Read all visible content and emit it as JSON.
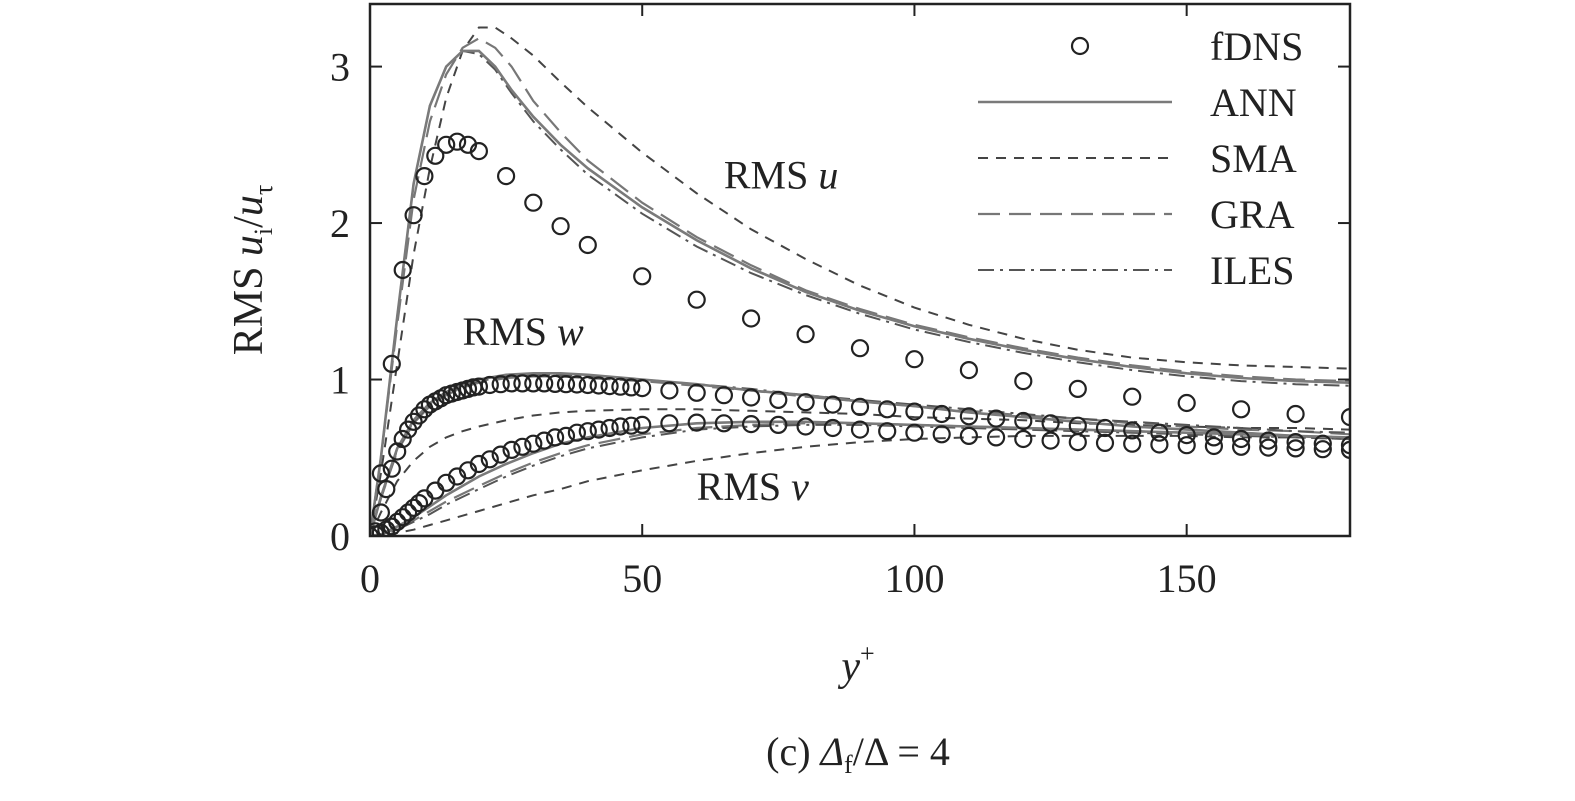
{
  "chart_data": {
    "type": "line",
    "caption_prefix": "(c) ",
    "caption_df": "Δ",
    "caption_df_sub": "f",
    "caption_rest": "/Δ = 4",
    "xlabel_main": "y",
    "xlabel_sup": "+",
    "ylabel_prefix": "RMS ",
    "ylabel_ui": "u",
    "ylabel_i": "i",
    "ylabel_slash": "/",
    "ylabel_ut": "u",
    "ylabel_tau": "τ",
    "xlim": [
      0,
      180
    ],
    "ylim": [
      0,
      3.4
    ],
    "x_ticks": [
      0,
      50,
      100,
      150
    ],
    "x_tick_labels": [
      "0",
      "50",
      "100",
      "150"
    ],
    "y_ticks": [
      0,
      1,
      2,
      3
    ],
    "y_tick_labels": [
      "0",
      "1",
      "2",
      "3"
    ],
    "legend_position": "top-right",
    "legend": [
      {
        "label": "fDNS",
        "style": "circle"
      },
      {
        "label": "ANN",
        "style": "solid"
      },
      {
        "label": "SMA",
        "style": "short-dash"
      },
      {
        "label": "GRA",
        "style": "long-dash"
      },
      {
        "label": "ILES",
        "style": "dash-dot"
      }
    ],
    "annotations": [
      {
        "prefix": "RMS ",
        "var": "u",
        "x": 65,
        "y": 2.22
      },
      {
        "prefix": "RMS ",
        "var": "w",
        "x": 17,
        "y": 1.22
      },
      {
        "prefix": "RMS ",
        "var": "v",
        "x": 60,
        "y": 0.23
      }
    ],
    "components": [
      {
        "name": "u",
        "fdns": {
          "x": [
            0,
            2,
            4,
            6,
            8,
            10,
            12,
            14,
            16,
            18,
            20,
            25,
            30,
            35,
            40,
            50,
            60,
            70,
            80,
            90,
            100,
            110,
            120,
            130,
            140,
            150,
            160,
            170,
            180
          ],
          "y": [
            0,
            0.4,
            1.1,
            1.7,
            2.05,
            2.3,
            2.43,
            2.5,
            2.52,
            2.5,
            2.46,
            2.3,
            2.13,
            1.98,
            1.86,
            1.66,
            1.51,
            1.39,
            1.29,
            1.2,
            1.13,
            1.06,
            0.99,
            0.94,
            0.89,
            0.85,
            0.81,
            0.78,
            0.76
          ]
        },
        "ANN": {
          "x": [
            0,
            2,
            5,
            8,
            11,
            14,
            17,
            20,
            23,
            26,
            30,
            35,
            40,
            50,
            60,
            70,
            80,
            90,
            100,
            110,
            120,
            130,
            140,
            150,
            160,
            170,
            180
          ],
          "y": [
            0,
            0.5,
            1.4,
            2.25,
            2.75,
            3.0,
            3.1,
            3.1,
            3.0,
            2.85,
            2.68,
            2.5,
            2.35,
            2.1,
            1.89,
            1.71,
            1.56,
            1.44,
            1.34,
            1.26,
            1.19,
            1.13,
            1.08,
            1.04,
            1.01,
            0.99,
            0.98
          ]
        },
        "SMA": {
          "x": [
            0,
            2,
            5,
            8,
            11,
            14,
            17,
            20,
            23,
            26,
            30,
            35,
            40,
            50,
            60,
            70,
            80,
            90,
            100,
            110,
            120,
            130,
            140,
            150,
            160,
            170,
            180
          ],
          "y": [
            0,
            0.4,
            1.1,
            1.8,
            2.35,
            2.8,
            3.1,
            3.25,
            3.25,
            3.18,
            3.07,
            2.9,
            2.74,
            2.45,
            2.19,
            1.96,
            1.77,
            1.6,
            1.46,
            1.35,
            1.26,
            1.19,
            1.14,
            1.11,
            1.09,
            1.08,
            1.07
          ]
        },
        "GRA": {
          "x": [
            0,
            2,
            5,
            8,
            11,
            14,
            17,
            20,
            23,
            26,
            30,
            35,
            40,
            50,
            60,
            70,
            80,
            90,
            100,
            110,
            120,
            130,
            140,
            150,
            160,
            170,
            180
          ],
          "y": [
            0,
            0.5,
            1.35,
            2.15,
            2.65,
            2.95,
            3.12,
            3.18,
            3.12,
            3.0,
            2.78,
            2.58,
            2.4,
            2.13,
            1.91,
            1.73,
            1.57,
            1.45,
            1.35,
            1.27,
            1.2,
            1.14,
            1.09,
            1.05,
            1.02,
            1.0,
            0.99
          ]
        },
        "ILES": {
          "x": [
            0,
            2,
            5,
            8,
            11,
            14,
            17,
            20,
            23,
            26,
            30,
            35,
            40,
            50,
            60,
            70,
            80,
            90,
            100,
            110,
            120,
            130,
            140,
            150,
            160,
            170,
            180
          ],
          "y": [
            0,
            0.5,
            1.4,
            2.25,
            2.75,
            3.0,
            3.1,
            3.08,
            2.98,
            2.83,
            2.65,
            2.47,
            2.31,
            2.06,
            1.85,
            1.68,
            1.54,
            1.42,
            1.32,
            1.24,
            1.17,
            1.11,
            1.06,
            1.02,
            0.99,
            0.97,
            0.96
          ]
        }
      },
      {
        "name": "w",
        "fdns": {
          "x": [
            1,
            2,
            3,
            4,
            5,
            6,
            7,
            8,
            9,
            10,
            11,
            12,
            13,
            14,
            15,
            16,
            17,
            18,
            19,
            20,
            22,
            24,
            26,
            28,
            30,
            32,
            34,
            36,
            38,
            40,
            42,
            44,
            46,
            48,
            50,
            55,
            60,
            65,
            70,
            75,
            80,
            85,
            90,
            95,
            100,
            105,
            110,
            115,
            120,
            125,
            130,
            135,
            140,
            145,
            150,
            155,
            160,
            165,
            170,
            175,
            180
          ],
          "y": [
            0.03,
            0.15,
            0.3,
            0.43,
            0.54,
            0.62,
            0.68,
            0.73,
            0.77,
            0.81,
            0.84,
            0.86,
            0.88,
            0.9,
            0.91,
            0.92,
            0.93,
            0.94,
            0.95,
            0.955,
            0.965,
            0.97,
            0.975,
            0.975,
            0.975,
            0.975,
            0.972,
            0.97,
            0.968,
            0.965,
            0.962,
            0.958,
            0.954,
            0.95,
            0.945,
            0.93,
            0.915,
            0.9,
            0.885,
            0.87,
            0.855,
            0.84,
            0.825,
            0.81,
            0.795,
            0.78,
            0.765,
            0.75,
            0.735,
            0.72,
            0.705,
            0.69,
            0.675,
            0.66,
            0.645,
            0.63,
            0.62,
            0.61,
            0.6,
            0.59,
            0.58
          ]
        },
        "ANN": {
          "x": [
            0,
            2,
            5,
            8,
            11,
            14,
            17,
            20,
            25,
            30,
            35,
            40,
            50,
            60,
            70,
            80,
            90,
            100,
            110,
            120,
            130,
            140,
            150,
            160,
            170,
            180
          ],
          "y": [
            0,
            0.25,
            0.56,
            0.74,
            0.85,
            0.92,
            0.97,
            1.0,
            1.03,
            1.04,
            1.04,
            1.03,
            1.0,
            0.97,
            0.93,
            0.9,
            0.86,
            0.83,
            0.79,
            0.76,
            0.73,
            0.7,
            0.68,
            0.66,
            0.64,
            0.62
          ]
        },
        "SMA": {
          "x": [
            0,
            2,
            5,
            8,
            11,
            14,
            17,
            20,
            25,
            30,
            35,
            40,
            50,
            60,
            70,
            80,
            90,
            100,
            110,
            120,
            130,
            140,
            150,
            160,
            170,
            180
          ],
          "y": [
            0,
            0.15,
            0.35,
            0.48,
            0.57,
            0.63,
            0.67,
            0.7,
            0.74,
            0.77,
            0.79,
            0.8,
            0.81,
            0.81,
            0.8,
            0.79,
            0.78,
            0.76,
            0.75,
            0.74,
            0.72,
            0.71,
            0.7,
            0.69,
            0.69,
            0.68
          ]
        },
        "GRA": {
          "x": [
            0,
            2,
            5,
            8,
            11,
            14,
            17,
            20,
            25,
            30,
            35,
            40,
            50,
            60,
            70,
            80,
            90,
            100,
            110,
            120,
            130,
            140,
            150,
            160,
            170,
            180
          ],
          "y": [
            0,
            0.24,
            0.54,
            0.72,
            0.83,
            0.9,
            0.95,
            0.98,
            1.01,
            1.02,
            1.02,
            1.01,
            0.99,
            0.96,
            0.93,
            0.89,
            0.86,
            0.83,
            0.8,
            0.77,
            0.75,
            0.72,
            0.7,
            0.68,
            0.67,
            0.65
          ]
        },
        "ILES": {
          "x": [
            0,
            2,
            5,
            8,
            11,
            14,
            17,
            20,
            25,
            30,
            35,
            40,
            50,
            60,
            70,
            80,
            90,
            100,
            110,
            120,
            130,
            140,
            150,
            160,
            170,
            180
          ],
          "y": [
            0,
            0.24,
            0.55,
            0.73,
            0.84,
            0.91,
            0.96,
            0.99,
            1.02,
            1.03,
            1.03,
            1.02,
            1.0,
            0.97,
            0.94,
            0.9,
            0.87,
            0.84,
            0.81,
            0.78,
            0.75,
            0.73,
            0.71,
            0.69,
            0.67,
            0.66
          ]
        }
      },
      {
        "name": "v",
        "fdns": {
          "x": [
            1,
            2,
            3,
            4,
            5,
            6,
            7,
            8,
            9,
            10,
            12,
            14,
            16,
            18,
            20,
            22,
            24,
            26,
            28,
            30,
            32,
            34,
            36,
            38,
            40,
            42,
            44,
            46,
            48,
            50,
            55,
            60,
            65,
            70,
            75,
            80,
            85,
            90,
            95,
            100,
            105,
            110,
            115,
            120,
            125,
            130,
            135,
            140,
            145,
            150,
            155,
            160,
            165,
            170,
            175,
            180
          ],
          "y": [
            0.01,
            0.02,
            0.04,
            0.06,
            0.09,
            0.12,
            0.15,
            0.18,
            0.21,
            0.24,
            0.29,
            0.34,
            0.38,
            0.42,
            0.46,
            0.49,
            0.52,
            0.55,
            0.57,
            0.59,
            0.61,
            0.63,
            0.64,
            0.66,
            0.67,
            0.68,
            0.69,
            0.7,
            0.705,
            0.71,
            0.72,
            0.725,
            0.72,
            0.715,
            0.71,
            0.7,
            0.69,
            0.68,
            0.67,
            0.66,
            0.65,
            0.64,
            0.63,
            0.62,
            0.61,
            0.6,
            0.595,
            0.59,
            0.585,
            0.58,
            0.575,
            0.57,
            0.565,
            0.56,
            0.555,
            0.55
          ]
        },
        "ANN": {
          "x": [
            0,
            2,
            5,
            8,
            11,
            14,
            17,
            20,
            25,
            30,
            35,
            40,
            50,
            60,
            70,
            80,
            90,
            100,
            110,
            120,
            130,
            140,
            150,
            160,
            170,
            180
          ],
          "y": [
            0,
            0.01,
            0.06,
            0.12,
            0.19,
            0.26,
            0.32,
            0.38,
            0.46,
            0.53,
            0.59,
            0.63,
            0.69,
            0.72,
            0.73,
            0.73,
            0.72,
            0.71,
            0.7,
            0.69,
            0.68,
            0.67,
            0.66,
            0.65,
            0.64,
            0.63
          ]
        },
        "SMA": {
          "x": [
            0,
            2,
            5,
            8,
            11,
            14,
            17,
            20,
            25,
            30,
            35,
            40,
            50,
            60,
            70,
            80,
            90,
            100,
            110,
            120,
            130,
            140,
            150,
            160,
            170,
            180
          ],
          "y": [
            0,
            0.005,
            0.02,
            0.04,
            0.07,
            0.1,
            0.13,
            0.16,
            0.21,
            0.26,
            0.3,
            0.35,
            0.42,
            0.48,
            0.53,
            0.57,
            0.6,
            0.62,
            0.63,
            0.64,
            0.64,
            0.64,
            0.64,
            0.63,
            0.63,
            0.62
          ]
        },
        "GRA": {
          "x": [
            0,
            2,
            5,
            8,
            11,
            14,
            17,
            20,
            25,
            30,
            35,
            40,
            50,
            60,
            70,
            80,
            90,
            100,
            110,
            120,
            130,
            140,
            150,
            160,
            170,
            180
          ],
          "y": [
            0,
            0.01,
            0.05,
            0.1,
            0.16,
            0.22,
            0.27,
            0.32,
            0.4,
            0.47,
            0.53,
            0.58,
            0.65,
            0.69,
            0.71,
            0.72,
            0.72,
            0.71,
            0.7,
            0.69,
            0.68,
            0.67,
            0.66,
            0.65,
            0.64,
            0.63
          ]
        },
        "ILES": {
          "x": [
            0,
            2,
            5,
            8,
            11,
            14,
            17,
            20,
            25,
            30,
            35,
            40,
            50,
            60,
            70,
            80,
            90,
            100,
            110,
            120,
            130,
            140,
            150,
            160,
            170,
            180
          ],
          "y": [
            0,
            0.01,
            0.04,
            0.09,
            0.14,
            0.2,
            0.25,
            0.3,
            0.38,
            0.45,
            0.51,
            0.56,
            0.63,
            0.68,
            0.7,
            0.71,
            0.71,
            0.7,
            0.69,
            0.68,
            0.67,
            0.66,
            0.65,
            0.64,
            0.63,
            0.62
          ]
        }
      }
    ],
    "line_colors": {
      "ANN": "#7a7a7a",
      "SMA": "#444444",
      "GRA": "#777777",
      "ILES": "#555555",
      "fdns": "#222222",
      "frame": "#222222"
    }
  }
}
